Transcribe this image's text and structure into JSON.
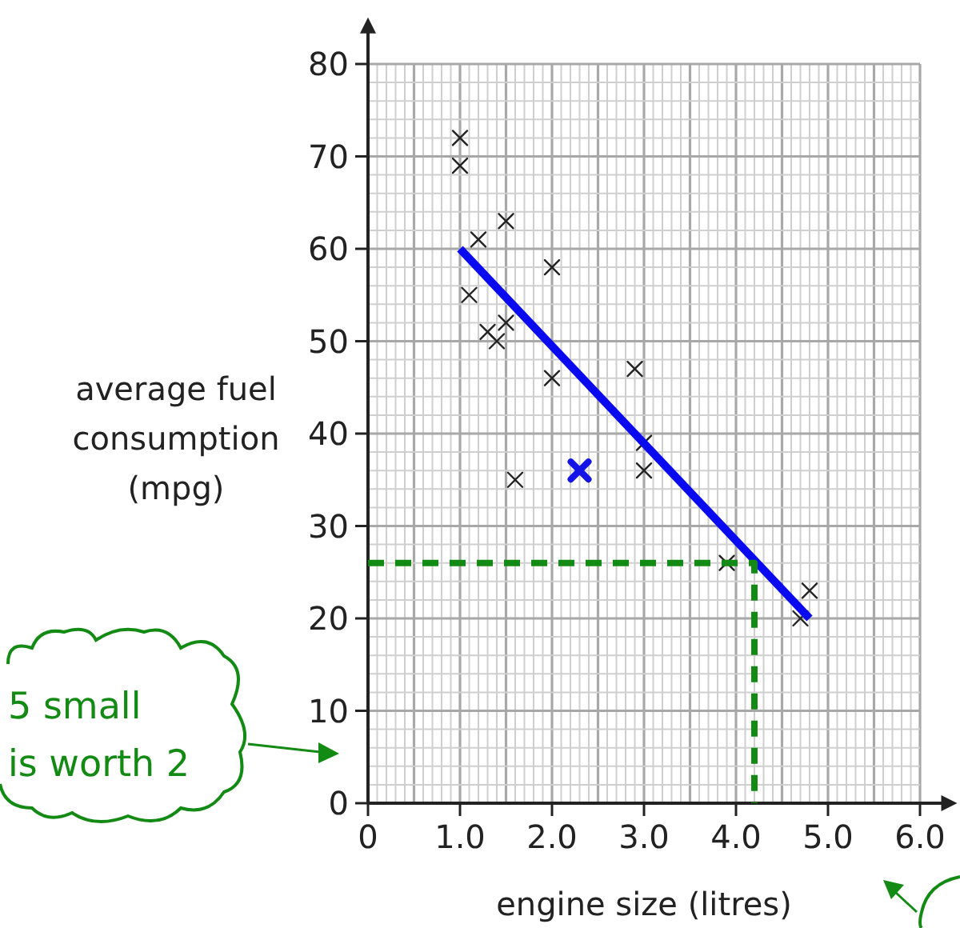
{
  "chart_data": {
    "type": "scatter",
    "xlabel": "engine size (litres)",
    "ylabel": "average fuel\nconsumption\n(mpg)",
    "xlim": [
      0,
      6.3
    ],
    "ylim": [
      0,
      84
    ],
    "xticks": [
      0,
      {
        "value": 1,
        "label": "1.0"
      },
      {
        "value": 2,
        "label": "2.0"
      },
      {
        "value": 3,
        "label": "3.0"
      },
      {
        "value": 4,
        "label": "4.0"
      },
      {
        "value": 5,
        "label": "5.0"
      },
      {
        "value": 6,
        "label": "6.0"
      }
    ],
    "yticks": [
      0,
      10,
      20,
      30,
      40,
      50,
      60,
      70,
      80
    ],
    "grid": true,
    "series": [
      {
        "color": "#222222",
        "marker": "cross",
        "x": [
          1.0,
          1.0,
          1.2,
          1.5,
          2.0,
          1.1,
          1.3,
          1.4,
          1.5,
          2.0,
          2.9,
          1.6,
          3.0,
          3.0,
          3.9,
          4.8,
          4.7
        ],
        "values": [
          72,
          69,
          61,
          63,
          58,
          55,
          51,
          50,
          52,
          46,
          47,
          35,
          36,
          39,
          26,
          23,
          20
        ]
      },
      {
        "color": "#1414e6",
        "marker": "cross",
        "x": [
          2.3
        ],
        "values": [
          36
        ]
      },
      {
        "type": "line",
        "color": "#0a0af0",
        "line_style": "solid",
        "x": [
          1.0,
          4.8
        ],
        "values": [
          60,
          20
        ]
      },
      {
        "type": "line",
        "color": "#138a13",
        "line_style": "dashed",
        "x": [
          0,
          4.2,
          4.2
        ],
        "values": [
          26,
          26,
          0
        ]
      }
    ],
    "annotations": [
      "5 small\nis worth 2"
    ]
  }
}
